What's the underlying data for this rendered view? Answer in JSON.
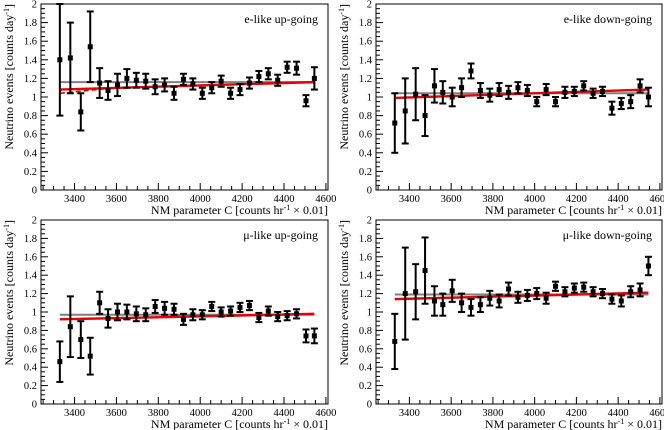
{
  "chart_data": [
    {
      "type": "scatter",
      "title": "e-like up-going",
      "xlabel": "NM parameter C [counts hr",
      "xlabel_sup": "-1",
      "xlabel_tail": " × 0.01]",
      "ylabel": "Neutrino events [counts day",
      "ylabel_sup": "-1",
      "ylabel_tail": "]",
      "xlim": [
        3240,
        4610
      ],
      "ylim": [
        0,
        2
      ],
      "xticks": [
        "3400",
        "3600",
        "3800",
        "4000",
        "4200",
        "4400",
        "4600"
      ],
      "yticks": [
        "0",
        "0.2",
        "0.4",
        "0.6",
        "0.8",
        "1",
        "1.2",
        "1.4",
        "1.6",
        "1.8",
        "2"
      ],
      "points": {
        "x": [
          3330,
          3380,
          3430,
          3475,
          3520,
          3560,
          3605,
          3650,
          3695,
          3740,
          3785,
          3830,
          3875,
          3920,
          3965,
          4010,
          4055,
          4100,
          4145,
          4190,
          4235,
          4280,
          4325,
          4370,
          4415,
          4460,
          4505,
          4545
        ],
        "y": [
          1.4,
          1.42,
          0.84,
          1.54,
          1.15,
          1.07,
          1.13,
          1.2,
          1.18,
          1.17,
          1.11,
          1.13,
          1.04,
          1.19,
          1.14,
          1.04,
          1.1,
          1.17,
          1.04,
          1.08,
          1.15,
          1.22,
          1.25,
          1.18,
          1.32,
          1.31,
          0.96,
          1.2
        ],
        "err": [
          0.6,
          0.38,
          0.2,
          0.38,
          0.16,
          0.1,
          0.12,
          0.1,
          0.08,
          0.08,
          0.08,
          0.07,
          0.07,
          0.06,
          0.06,
          0.06,
          0.06,
          0.06,
          0.06,
          0.06,
          0.06,
          0.06,
          0.06,
          0.06,
          0.06,
          0.07,
          0.06,
          0.12
        ]
      },
      "fits": [
        {
          "color": "#7f7f7f",
          "x": [
            3330,
            4545
          ],
          "y": [
            1.16,
            1.16
          ]
        },
        {
          "color": "#e60000",
          "x": [
            3330,
            4545
          ],
          "y": [
            1.08,
            1.16
          ]
        },
        {
          "color": "#e60000",
          "dashed": true,
          "x": [
            3330,
            3600
          ],
          "y": [
            1.04,
            1.1
          ]
        }
      ]
    },
    {
      "type": "scatter",
      "title": "e-like down-going",
      "xlabel": "NM parameter C [counts hr",
      "xlabel_sup": "-1",
      "xlabel_tail": " × 0.01]",
      "ylabel": "Neutrino events [counts day",
      "ylabel_sup": "-1",
      "ylabel_tail": "]",
      "xlim": [
        3240,
        4610
      ],
      "ylim": [
        0,
        2
      ],
      "xticks": [
        "3400",
        "3600",
        "3800",
        "4000",
        "4200",
        "4400",
        "4600"
      ],
      "yticks": [
        "0",
        "0.2",
        "0.4",
        "0.6",
        "0.8",
        "1",
        "1.2",
        "1.4",
        "1.6",
        "1.8",
        "2"
      ],
      "points": {
        "x": [
          3330,
          3380,
          3430,
          3475,
          3520,
          3560,
          3605,
          3650,
          3695,
          3740,
          3785,
          3830,
          3875,
          3920,
          3965,
          4010,
          4055,
          4100,
          4145,
          4190,
          4235,
          4280,
          4325,
          4370,
          4415,
          4460,
          4505,
          4545
        ],
        "y": [
          0.72,
          0.85,
          1.03,
          0.8,
          1.12,
          1.05,
          1.0,
          1.1,
          1.28,
          1.07,
          1.02,
          1.08,
          1.05,
          1.1,
          1.07,
          0.95,
          1.08,
          0.95,
          1.05,
          1.06,
          1.12,
          1.04,
          1.06,
          0.88,
          0.93,
          0.95,
          1.12,
          1.0
        ],
        "err": [
          0.32,
          0.35,
          0.28,
          0.22,
          0.18,
          0.12,
          0.1,
          0.1,
          0.08,
          0.08,
          0.07,
          0.07,
          0.07,
          0.06,
          0.06,
          0.05,
          0.06,
          0.05,
          0.06,
          0.05,
          0.05,
          0.05,
          0.05,
          0.07,
          0.06,
          0.07,
          0.07,
          0.1
        ]
      },
      "fits": [
        {
          "color": "#7f7f7f",
          "x": [
            3330,
            4545
          ],
          "y": [
            1.04,
            1.04
          ]
        },
        {
          "color": "#e60000",
          "x": [
            3330,
            4545
          ],
          "y": [
            0.99,
            1.08
          ]
        }
      ]
    },
    {
      "type": "scatter",
      "title": "μ-like up-going",
      "xlabel": "NM parameter C [counts hr",
      "xlabel_sup": "-1",
      "xlabel_tail": " × 0.01]",
      "ylabel": "Neutrino events [counts day",
      "ylabel_sup": "-1",
      "ylabel_tail": "]",
      "xlim": [
        3240,
        4610
      ],
      "ylim": [
        0,
        2
      ],
      "xticks": [
        "3400",
        "3600",
        "3800",
        "4000",
        "4200",
        "4400",
        "4600"
      ],
      "yticks": [
        "0",
        "0.2",
        "0.4",
        "0.6",
        "0.8",
        "1",
        "1.2",
        "1.4",
        "1.6",
        "1.8",
        "2"
      ],
      "points": {
        "x": [
          3330,
          3380,
          3430,
          3475,
          3520,
          3560,
          3605,
          3650,
          3695,
          3740,
          3785,
          3830,
          3875,
          3920,
          3965,
          4010,
          4055,
          4100,
          4145,
          4190,
          4235,
          4280,
          4325,
          4370,
          4415,
          4460,
          4505,
          4545
        ],
        "y": [
          0.46,
          0.84,
          0.7,
          0.52,
          1.1,
          0.93,
          1.0,
          1.0,
          0.98,
          0.97,
          1.06,
          1.04,
          1.03,
          0.92,
          0.97,
          0.97,
          1.06,
          1.0,
          1.01,
          1.05,
          1.07,
          0.94,
          1.01,
          0.95,
          0.96,
          0.98,
          0.74,
          0.74
        ],
        "err": [
          0.22,
          0.33,
          0.2,
          0.2,
          0.12,
          0.1,
          0.09,
          0.08,
          0.08,
          0.07,
          0.07,
          0.07,
          0.06,
          0.06,
          0.06,
          0.05,
          0.05,
          0.05,
          0.05,
          0.05,
          0.05,
          0.05,
          0.05,
          0.05,
          0.05,
          0.05,
          0.07,
          0.08
        ]
      },
      "fits": [
        {
          "color": "#7f7f7f",
          "x": [
            3330,
            4545
          ],
          "y": [
            0.97,
            0.97
          ]
        },
        {
          "color": "#e60000",
          "x": [
            3330,
            4545
          ],
          "y": [
            0.92,
            0.98
          ]
        }
      ]
    },
    {
      "type": "scatter",
      "title": "μ-like down-going",
      "xlabel": "NM parameter C [counts hr",
      "xlabel_sup": "-1",
      "xlabel_tail": " × 0.01]",
      "ylabel": "Neutrino events [counts day",
      "ylabel_sup": "-1",
      "ylabel_tail": "]",
      "xlim": [
        3240,
        4610
      ],
      "ylim": [
        0,
        2
      ],
      "xticks": [
        "3400",
        "3600",
        "3800",
        "4000",
        "4200",
        "4400",
        "4600"
      ],
      "yticks": [
        "0",
        "0.2",
        "0.4",
        "0.6",
        "0.8",
        "1",
        "1.2",
        "1.4",
        "1.6",
        "1.8",
        "2"
      ],
      "points": {
        "x": [
          3330,
          3380,
          3430,
          3475,
          3520,
          3560,
          3605,
          3650,
          3695,
          3740,
          3785,
          3830,
          3875,
          3920,
          3965,
          4010,
          4055,
          4100,
          4145,
          4190,
          4235,
          4280,
          4325,
          4370,
          4415,
          4460,
          4505,
          4545
        ],
        "y": [
          0.68,
          1.2,
          1.22,
          1.45,
          1.12,
          1.08,
          1.23,
          1.1,
          1.05,
          1.08,
          1.15,
          1.12,
          1.25,
          1.16,
          1.18,
          1.2,
          1.15,
          1.28,
          1.22,
          1.26,
          1.27,
          1.22,
          1.2,
          1.14,
          1.12,
          1.22,
          1.24,
          1.5
        ],
        "err": [
          0.3,
          0.5,
          0.3,
          0.36,
          0.16,
          0.12,
          0.12,
          0.1,
          0.09,
          0.08,
          0.08,
          0.07,
          0.07,
          0.06,
          0.06,
          0.06,
          0.06,
          0.05,
          0.05,
          0.05,
          0.05,
          0.05,
          0.05,
          0.05,
          0.06,
          0.06,
          0.07,
          0.1
        ]
      },
      "fits": [
        {
          "color": "#7f7f7f",
          "x": [
            3330,
            4545
          ],
          "y": [
            1.19,
            1.19
          ]
        },
        {
          "color": "#e60000",
          "x": [
            3330,
            4545
          ],
          "y": [
            1.14,
            1.21
          ]
        }
      ]
    }
  ]
}
